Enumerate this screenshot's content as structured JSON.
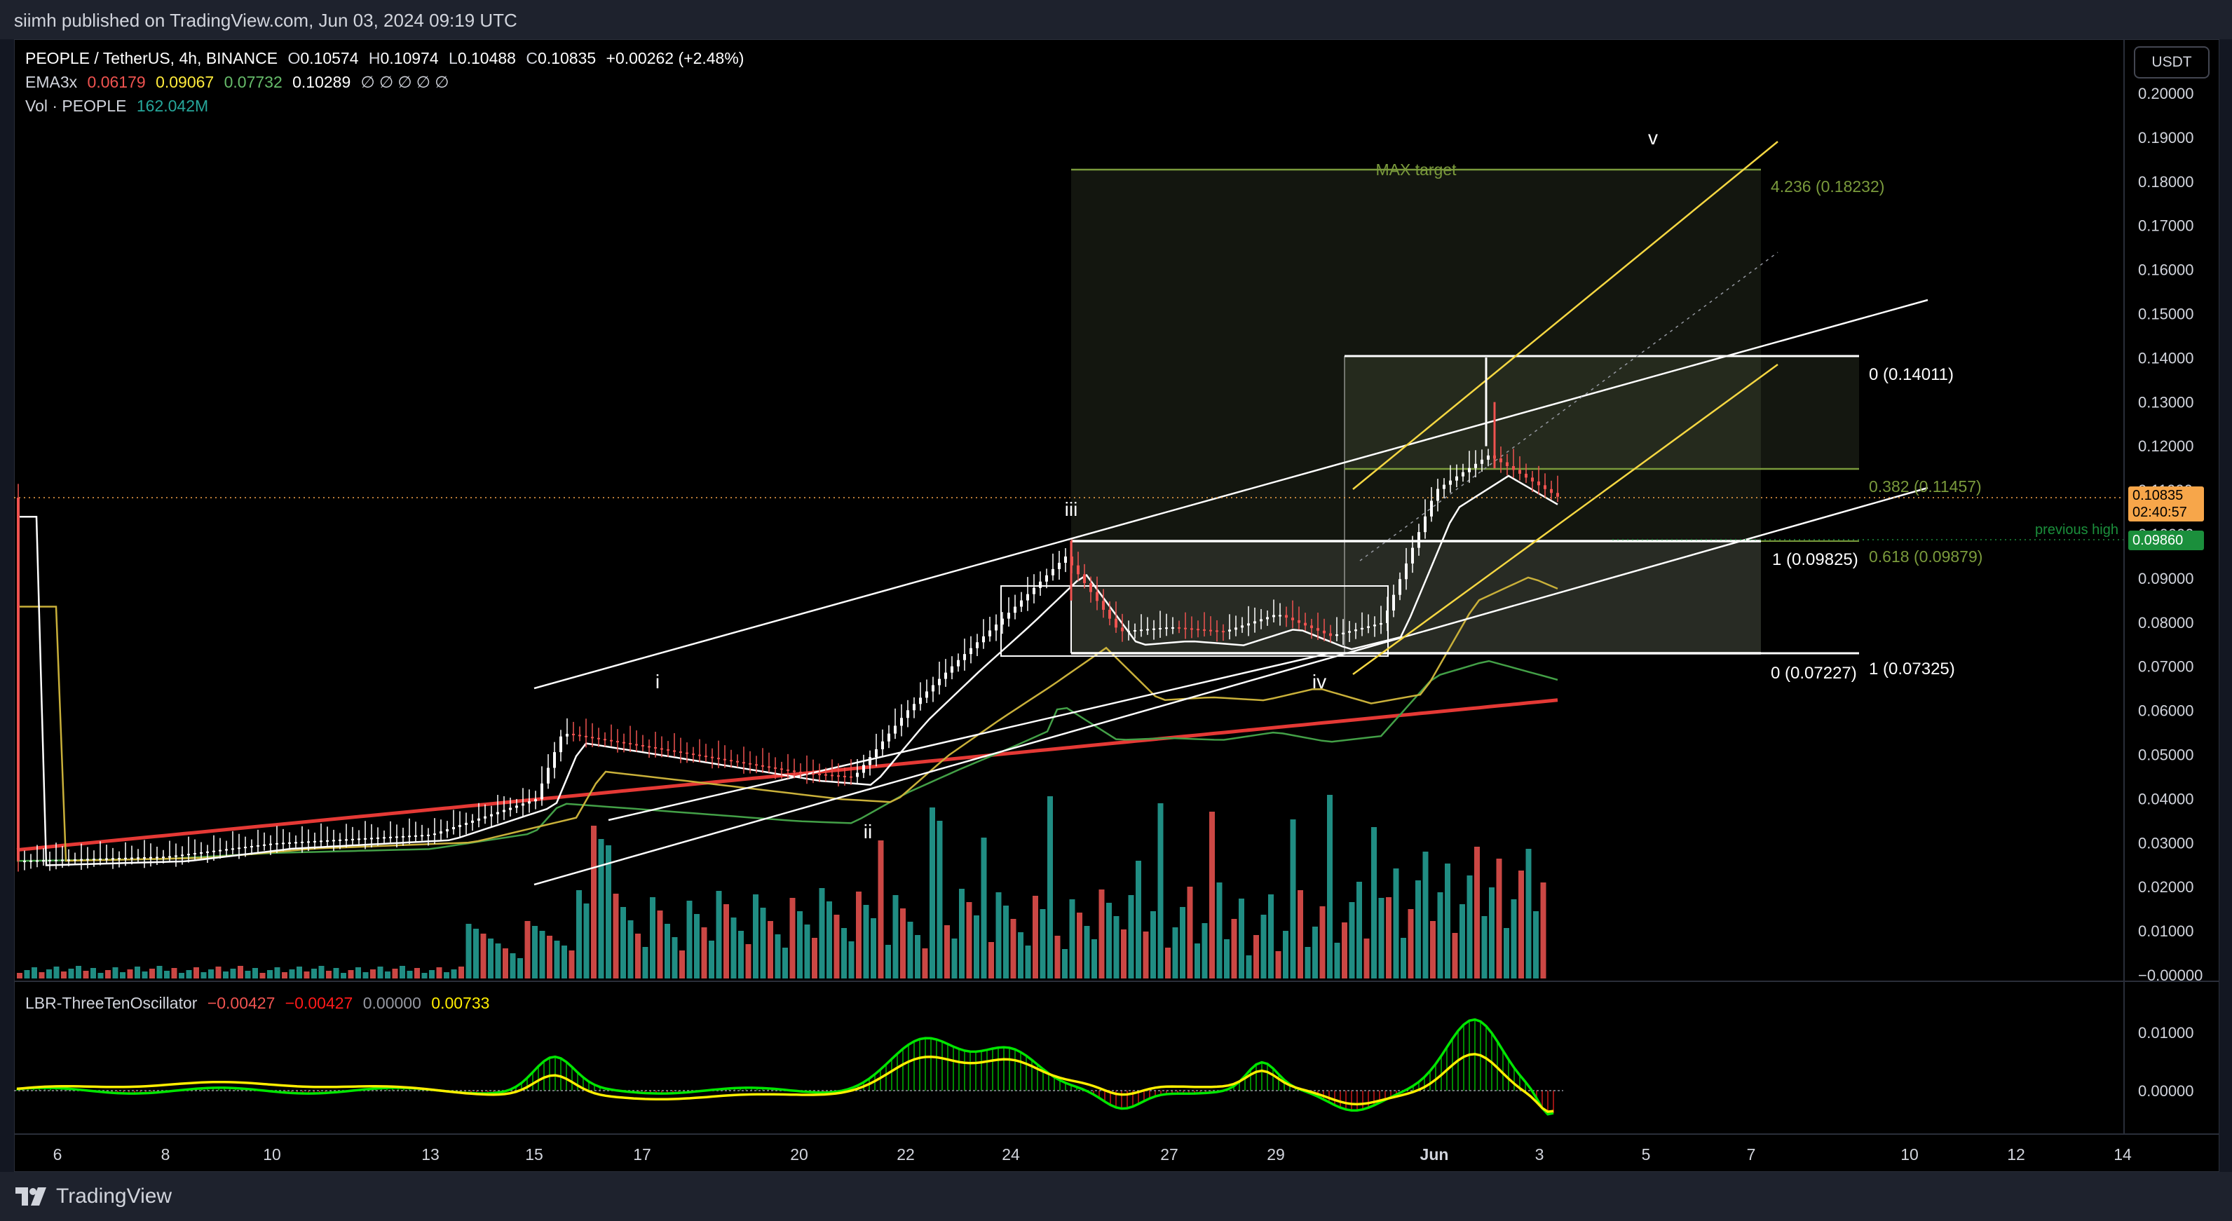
{
  "header": {
    "publisher_line": "siimh published on TradingView.com, Jun 03, 2024 09:19 UTC"
  },
  "legend": {
    "symbol": "PEOPLE / TetherUS, 4h, BINANCE",
    "open_label": "O",
    "open": "0.10574",
    "high_label": "H",
    "high": "0.10974",
    "low_label": "L",
    "low": "0.10488",
    "close_label": "C",
    "close": "0.10835",
    "change": "+0.00262 (+2.48%)",
    "ema_label": "EMA3x",
    "ema_values": [
      "0.06179",
      "0.09067",
      "0.07732",
      "0.10289"
    ],
    "ema_empty": "∅ ∅ ∅ ∅ ∅",
    "vol_label": "Vol · PEOPLE",
    "vol_value": "162.042",
    "vol_unit": "M",
    "osc_label": "LBR-ThreeTenOscillator",
    "osc_values": [
      "−0.00427",
      "−0.00427",
      "0.00000",
      "0.00733"
    ]
  },
  "currency_button": "USDT",
  "price_axis": {
    "ticks": [
      "0.20000",
      "0.19000",
      "0.18000",
      "0.17000",
      "0.16000",
      "0.15000",
      "0.14000",
      "0.13000",
      "0.12000",
      "0.11000",
      "0.10000",
      "0.09000",
      "0.08000",
      "0.07000",
      "0.06000",
      "0.05000",
      "0.04000",
      "0.03000",
      "0.02000",
      "0.01000",
      "−0.00000"
    ],
    "current_price": "0.10835",
    "countdown": "02:40:57",
    "previous_high_price": "0.09860",
    "osc_ticks": [
      "0.01000",
      "0.00000"
    ]
  },
  "time_axis": {
    "labels": [
      "6",
      "8",
      "10",
      "13",
      "15",
      "17",
      "20",
      "22",
      "24",
      "27",
      "29",
      "Jun",
      "3",
      "5",
      "7",
      "10",
      "12",
      "14"
    ]
  },
  "annotations": {
    "wave_i": "i",
    "wave_ii": "ii",
    "wave_iii": "iii",
    "wave_iv": "iv",
    "wave_v": "v",
    "max_target": "MAX target",
    "fib_4236": "4.236 (0.18232)",
    "fib_0_top": "0 (0.14011)",
    "fib_0382": "0.382 (0.11457)",
    "fib_1_098": "1 (0.09825)",
    "fib_0618": "0.618 (0.09879)",
    "fib_0_bottom": "0 (0.07227)",
    "fib_1_bottom": "1 (0.07325)",
    "previous_high": "previous high"
  },
  "colors": {
    "background": "#000000",
    "frame": "#131722",
    "up_candle": "#ffffff",
    "down_candle": "#ef5350",
    "vol_up": "#26a69a",
    "vol_down": "#ef5350",
    "ema_red": "#e53935",
    "ema_yellow": "#c9b03a",
    "ema_green": "#43a047",
    "ema_white": "#ffffff",
    "fib_green": "#7a9a3c",
    "channel_yellow": "#f5d742",
    "osc_green": "#00e600",
    "osc_red": "#ff2020",
    "osc_yellow": "#ffee00",
    "current_price_tag": "#f7a64a",
    "prev_high_tag": "#1b8f3c"
  },
  "footer": {
    "brand": "TradingView",
    "logo_icon": "tradingview-logo-icon"
  },
  "chart_data": {
    "type": "candlestick",
    "symbol": "PEOPLE / TetherUS",
    "interval": "4h",
    "price_axis_range": [
      0,
      0.2
    ],
    "x_labels": [
      "6",
      "8",
      "10",
      "13",
      "15",
      "17",
      "20",
      "22",
      "24",
      "27",
      "29",
      "Jun",
      "3",
      "5",
      "7",
      "10",
      "12",
      "14"
    ],
    "close_path": [
      {
        "x": "6",
        "close": 0.026
      },
      {
        "x": "8",
        "close": 0.027
      },
      {
        "x": "10",
        "close": 0.03
      },
      {
        "x": "13",
        "close": 0.032
      },
      {
        "x": "15",
        "close": 0.04
      },
      {
        "x": "16",
        "close": 0.055
      },
      {
        "x": "17",
        "close": 0.052
      },
      {
        "x": "20",
        "close": 0.046
      },
      {
        "x": "21",
        "close": 0.045
      },
      {
        "x": "22",
        "close": 0.06
      },
      {
        "x": "23",
        "close": 0.072
      },
      {
        "x": "24",
        "close": 0.083
      },
      {
        "x": "25",
        "close": 0.095
      },
      {
        "x": "26",
        "close": 0.078
      },
      {
        "x": "27",
        "close": 0.079
      },
      {
        "x": "28",
        "close": 0.078
      },
      {
        "x": "29",
        "close": 0.082
      },
      {
        "x": "30",
        "close": 0.077
      },
      {
        "x": "31",
        "close": 0.08
      },
      {
        "x": "Jun",
        "close": 0.11
      },
      {
        "x": "2",
        "close": 0.118
      },
      {
        "x": "3",
        "close": 0.10835
      }
    ],
    "horizontal_levels": [
      {
        "label": "4.236 (0.18232)",
        "price": 0.18232
      },
      {
        "label": "0 (0.14011)",
        "price": 0.14011
      },
      {
        "label": "0.382 (0.11457)",
        "price": 0.11457
      },
      {
        "label": "0.618 (0.09879)",
        "price": 0.09879
      },
      {
        "label": "1 (0.09825)",
        "price": 0.09825
      },
      {
        "label": "1 (0.07325)",
        "price": 0.07325
      },
      {
        "label": "0 (0.07227)",
        "price": 0.07227
      }
    ],
    "previous_high": 0.0986,
    "oscillator_range": [
      -0.005,
      0.013
    ]
  }
}
